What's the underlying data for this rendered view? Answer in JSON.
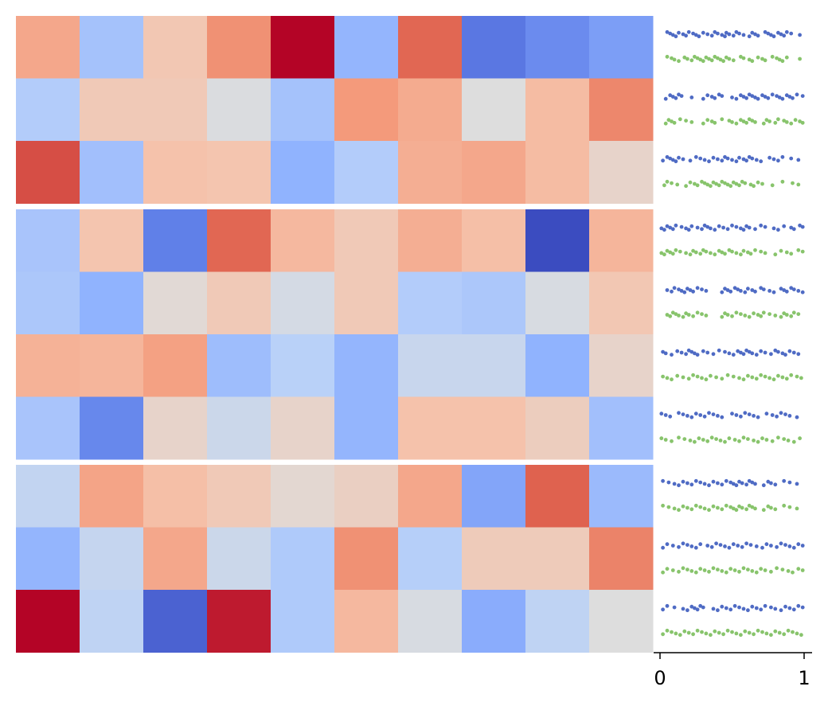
{
  "chart_data": [
    {
      "type": "heatmap",
      "colormap": "coolwarm",
      "colorscale_range": [
        0,
        1
      ],
      "row_groups": [
        3,
        4,
        3
      ],
      "columns": 10,
      "values": [
        [
          0.71,
          0.32,
          0.61,
          0.77,
          1.0,
          0.27,
          0.86,
          0.1,
          0.15,
          0.2
        ],
        [
          0.36,
          0.6,
          0.6,
          0.49,
          0.32,
          0.75,
          0.7,
          0.5,
          0.65,
          0.79
        ],
        [
          0.9,
          0.31,
          0.63,
          0.62,
          0.26,
          0.36,
          0.69,
          0.71,
          0.65,
          0.55
        ],
        [
          0.33,
          0.62,
          0.12,
          0.86,
          0.66,
          0.6,
          0.69,
          0.64,
          0.0,
          0.67
        ],
        [
          0.34,
          0.26,
          0.52,
          0.6,
          0.47,
          0.6,
          0.36,
          0.34,
          0.48,
          0.61
        ],
        [
          0.68,
          0.67,
          0.73,
          0.3,
          0.38,
          0.27,
          0.43,
          0.43,
          0.26,
          0.55
        ],
        [
          0.33,
          0.14,
          0.55,
          0.44,
          0.55,
          0.27,
          0.63,
          0.63,
          0.58,
          0.31
        ],
        [
          0.41,
          0.72,
          0.64,
          0.6,
          0.53,
          0.57,
          0.71,
          0.22,
          0.87,
          0.29
        ],
        [
          0.27,
          0.42,
          0.71,
          0.44,
          0.35,
          0.77,
          0.37,
          0.59,
          0.59,
          0.8
        ],
        [
          1.0,
          0.4,
          0.05,
          0.97,
          0.35,
          0.66,
          0.48,
          0.24,
          0.4,
          0.5
        ]
      ]
    },
    {
      "type": "scatter",
      "xlim": [
        0,
        1
      ],
      "xticks": [
        "0",
        "1"
      ],
      "series_colors": [
        "#4f6bc4",
        "#88c46c"
      ],
      "rows": [
        [
          [
            0.05,
            0.07,
            0.09,
            0.11,
            0.13,
            0.16,
            0.18,
            0.2,
            0.23,
            0.25,
            0.27,
            0.3,
            0.33,
            0.36,
            0.38,
            0.4,
            0.43,
            0.45,
            0.46,
            0.48,
            0.51,
            0.53,
            0.55,
            0.58,
            0.62,
            0.64,
            0.66,
            0.68,
            0.73,
            0.75,
            0.77,
            0.79,
            0.82,
            0.84,
            0.86,
            0.88,
            0.91,
            0.97
          ],
          [
            0.05,
            0.08,
            0.1,
            0.13,
            0.17,
            0.19,
            0.22,
            0.24,
            0.26,
            0.28,
            0.3,
            0.32,
            0.34,
            0.36,
            0.38,
            0.4,
            0.42,
            0.44,
            0.46,
            0.48,
            0.51,
            0.56,
            0.58,
            0.62,
            0.64,
            0.68,
            0.71,
            0.73,
            0.78,
            0.81,
            0.83,
            0.85,
            0.88,
            0.97
          ]
        ],
        [
          [
            0.04,
            0.07,
            0.09,
            0.11,
            0.13,
            0.15,
            0.22,
            0.3,
            0.33,
            0.36,
            0.38,
            0.41,
            0.43,
            0.5,
            0.53,
            0.56,
            0.58,
            0.6,
            0.62,
            0.64,
            0.66,
            0.68,
            0.71,
            0.73,
            0.75,
            0.78,
            0.81,
            0.83,
            0.85,
            0.88,
            0.9,
            0.92,
            0.95,
            0.99
          ],
          [
            0.04,
            0.06,
            0.08,
            0.1,
            0.14,
            0.18,
            0.22,
            0.3,
            0.33,
            0.36,
            0.38,
            0.43,
            0.48,
            0.5,
            0.53,
            0.56,
            0.58,
            0.6,
            0.62,
            0.64,
            0.66,
            0.72,
            0.74,
            0.76,
            0.8,
            0.82,
            0.86,
            0.88,
            0.91,
            0.94,
            0.97,
            0.99
          ]
        ],
        [
          [
            0.02,
            0.05,
            0.07,
            0.09,
            0.11,
            0.13,
            0.16,
            0.21,
            0.25,
            0.28,
            0.31,
            0.34,
            0.37,
            0.4,
            0.43,
            0.45,
            0.47,
            0.5,
            0.53,
            0.55,
            0.58,
            0.6,
            0.62,
            0.64,
            0.67,
            0.7,
            0.76,
            0.79,
            0.82,
            0.85,
            0.91,
            0.96
          ],
          [
            0.03,
            0.05,
            0.08,
            0.12,
            0.18,
            0.21,
            0.24,
            0.26,
            0.29,
            0.31,
            0.33,
            0.35,
            0.37,
            0.39,
            0.41,
            0.43,
            0.45,
            0.47,
            0.49,
            0.51,
            0.53,
            0.55,
            0.57,
            0.59,
            0.63,
            0.65,
            0.68,
            0.71,
            0.78,
            0.85,
            0.92,
            0.96
          ]
        ],
        [
          [
            0.01,
            0.03,
            0.05,
            0.07,
            0.09,
            0.11,
            0.15,
            0.18,
            0.2,
            0.22,
            0.26,
            0.29,
            0.31,
            0.33,
            0.35,
            0.38,
            0.41,
            0.44,
            0.47,
            0.5,
            0.53,
            0.56,
            0.58,
            0.6,
            0.62,
            0.66,
            0.7,
            0.73,
            0.79,
            0.82,
            0.86,
            0.91,
            0.93,
            0.97,
            0.99
          ],
          [
            0.01,
            0.03,
            0.05,
            0.07,
            0.09,
            0.11,
            0.14,
            0.18,
            0.21,
            0.23,
            0.25,
            0.28,
            0.3,
            0.32,
            0.35,
            0.38,
            0.41,
            0.43,
            0.45,
            0.48,
            0.5,
            0.53,
            0.56,
            0.58,
            0.61,
            0.63,
            0.66,
            0.7,
            0.73,
            0.8,
            0.84,
            0.88,
            0.91,
            0.96,
            0.99
          ]
        ],
        [
          [
            0.05,
            0.08,
            0.1,
            0.13,
            0.15,
            0.17,
            0.19,
            0.21,
            0.23,
            0.26,
            0.29,
            0.32,
            0.43,
            0.45,
            0.47,
            0.49,
            0.52,
            0.54,
            0.56,
            0.59,
            0.61,
            0.64,
            0.66,
            0.7,
            0.72,
            0.76,
            0.79,
            0.84,
            0.86,
            0.88,
            0.91,
            0.93,
            0.96,
            0.99
          ],
          [
            0.05,
            0.07,
            0.09,
            0.11,
            0.13,
            0.16,
            0.18,
            0.2,
            0.23,
            0.26,
            0.29,
            0.32,
            0.43,
            0.45,
            0.47,
            0.5,
            0.53,
            0.56,
            0.59,
            0.62,
            0.65,
            0.68,
            0.7,
            0.72,
            0.76,
            0.8,
            0.84,
            0.86,
            0.88,
            0.91,
            0.93,
            0.96
          ]
        ],
        [
          [
            0.02,
            0.04,
            0.08,
            0.12,
            0.15,
            0.18,
            0.2,
            0.22,
            0.24,
            0.26,
            0.3,
            0.33,
            0.37,
            0.41,
            0.45,
            0.48,
            0.51,
            0.54,
            0.56,
            0.58,
            0.6,
            0.62,
            0.64,
            0.67,
            0.7,
            0.73,
            0.77,
            0.8,
            0.82,
            0.85,
            0.87,
            0.9,
            0.93,
            0.96
          ],
          [
            0.02,
            0.05,
            0.08,
            0.12,
            0.16,
            0.2,
            0.23,
            0.26,
            0.29,
            0.32,
            0.35,
            0.39,
            0.43,
            0.47,
            0.51,
            0.55,
            0.58,
            0.61,
            0.64,
            0.67,
            0.7,
            0.73,
            0.76,
            0.79,
            0.82,
            0.85,
            0.88,
            0.91,
            0.95,
            0.98
          ]
        ],
        [
          [
            0.01,
            0.04,
            0.07,
            0.13,
            0.16,
            0.19,
            0.22,
            0.25,
            0.28,
            0.31,
            0.34,
            0.37,
            0.4,
            0.43,
            0.5,
            0.53,
            0.56,
            0.59,
            0.62,
            0.65,
            0.68,
            0.74,
            0.78,
            0.81,
            0.84,
            0.87,
            0.9,
            0.95
          ],
          [
            0.01,
            0.04,
            0.08,
            0.13,
            0.17,
            0.21,
            0.24,
            0.27,
            0.3,
            0.33,
            0.36,
            0.39,
            0.42,
            0.45,
            0.48,
            0.52,
            0.55,
            0.58,
            0.61,
            0.65,
            0.68,
            0.71,
            0.74,
            0.78,
            0.82,
            0.86,
            0.89,
            0.93,
            0.97
          ]
        ],
        [
          [
            0.02,
            0.06,
            0.1,
            0.13,
            0.16,
            0.19,
            0.22,
            0.25,
            0.28,
            0.31,
            0.34,
            0.37,
            0.4,
            0.43,
            0.46,
            0.49,
            0.51,
            0.53,
            0.55,
            0.57,
            0.6,
            0.62,
            0.64,
            0.66,
            0.72,
            0.75,
            0.77,
            0.8,
            0.86,
            0.9,
            0.95
          ],
          [
            0.02,
            0.06,
            0.1,
            0.13,
            0.16,
            0.19,
            0.22,
            0.25,
            0.28,
            0.31,
            0.34,
            0.37,
            0.4,
            0.43,
            0.46,
            0.49,
            0.51,
            0.53,
            0.55,
            0.57,
            0.6,
            0.62,
            0.64,
            0.66,
            0.72,
            0.75,
            0.77,
            0.8,
            0.86,
            0.9,
            0.95
          ]
        ],
        [
          [
            0.02,
            0.05,
            0.09,
            0.13,
            0.16,
            0.19,
            0.22,
            0.25,
            0.28,
            0.33,
            0.36,
            0.39,
            0.42,
            0.45,
            0.48,
            0.51,
            0.54,
            0.57,
            0.6,
            0.63,
            0.67,
            0.71,
            0.74,
            0.77,
            0.81,
            0.84,
            0.87,
            0.9,
            0.93,
            0.96,
            0.99
          ],
          [
            0.02,
            0.05,
            0.09,
            0.13,
            0.16,
            0.19,
            0.22,
            0.25,
            0.28,
            0.31,
            0.34,
            0.37,
            0.4,
            0.43,
            0.46,
            0.49,
            0.52,
            0.55,
            0.58,
            0.61,
            0.64,
            0.67,
            0.7,
            0.73,
            0.77,
            0.81,
            0.85,
            0.89,
            0.92,
            0.96,
            0.99
          ]
        ],
        [
          [
            0.02,
            0.05,
            0.1,
            0.16,
            0.19,
            0.22,
            0.24,
            0.26,
            0.28,
            0.3,
            0.37,
            0.4,
            0.43,
            0.46,
            0.49,
            0.52,
            0.55,
            0.58,
            0.61,
            0.64,
            0.67,
            0.7,
            0.73,
            0.77,
            0.8,
            0.84,
            0.87,
            0.9,
            0.93,
            0.96,
            0.99
          ],
          [
            0.02,
            0.05,
            0.08,
            0.11,
            0.14,
            0.17,
            0.2,
            0.23,
            0.26,
            0.29,
            0.32,
            0.35,
            0.38,
            0.41,
            0.44,
            0.47,
            0.5,
            0.53,
            0.56,
            0.59,
            0.62,
            0.65,
            0.68,
            0.71,
            0.74,
            0.77,
            0.8,
            0.83,
            0.86,
            0.89,
            0.92,
            0.95,
            0.98
          ]
        ]
      ]
    }
  ]
}
